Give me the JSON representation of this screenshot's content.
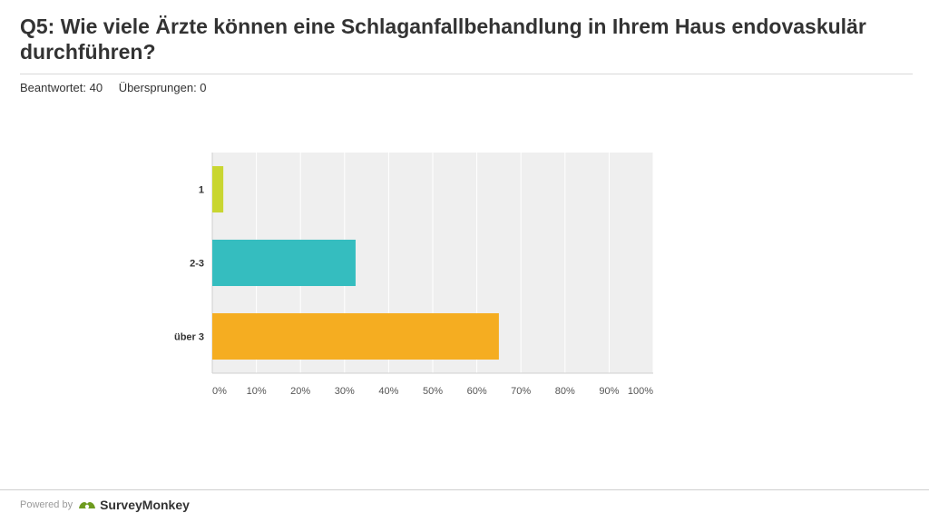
{
  "header": {
    "title": "Q5: Wie viele Ärzte können eine Schlaganfallbehandlung in Ihrem Haus endovaskulär durchführen?",
    "answered": "Beantwortet: 40",
    "skipped": "Übersprungen: 0"
  },
  "chart_data": {
    "type": "bar",
    "orientation": "horizontal",
    "categories": [
      "1",
      "2-3",
      "über 3"
    ],
    "values": [
      2.5,
      32.5,
      65
    ],
    "colors": [
      "#c9d631",
      "#35bdbf",
      "#f5ad21"
    ],
    "xlim": [
      0,
      100
    ],
    "xticks": [
      "0%",
      "10%",
      "20%",
      "30%",
      "40%",
      "50%",
      "60%",
      "70%",
      "80%",
      "90%",
      "100%"
    ],
    "grid": true
  },
  "footer": {
    "powered_by": "Powered by",
    "brand": "SurveyMonkey"
  }
}
